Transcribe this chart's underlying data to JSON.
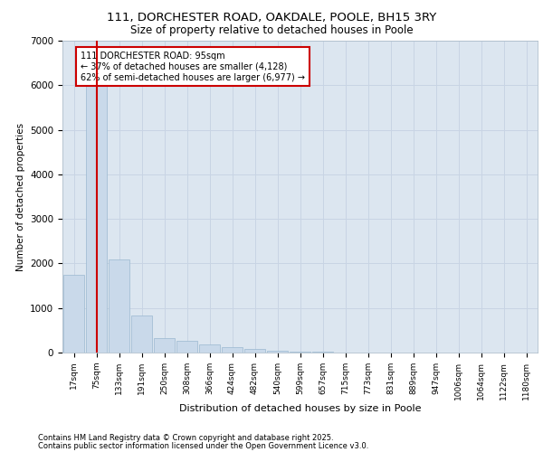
{
  "title1": "111, DORCHESTER ROAD, OAKDALE, POOLE, BH15 3RY",
  "title2": "Size of property relative to detached houses in Poole",
  "xlabel": "Distribution of detached houses by size in Poole",
  "ylabel": "Number of detached properties",
  "categories": [
    "17sqm",
    "75sqm",
    "133sqm",
    "191sqm",
    "250sqm",
    "308sqm",
    "366sqm",
    "424sqm",
    "482sqm",
    "540sqm",
    "599sqm",
    "657sqm",
    "715sqm",
    "773sqm",
    "831sqm",
    "889sqm",
    "947sqm",
    "1006sqm",
    "1064sqm",
    "1122sqm",
    "1180sqm"
  ],
  "values": [
    1750,
    5980,
    2100,
    830,
    330,
    270,
    190,
    120,
    80,
    50,
    25,
    12,
    5,
    2,
    1,
    0,
    0,
    0,
    0,
    0,
    0
  ],
  "bar_color": "#c9d9ea",
  "bar_edge_color": "#9ab8d0",
  "highlight_line_color": "#cc0000",
  "annotation_box_color": "#ffffff",
  "annotation_border_color": "#cc0000",
  "annotation_text_line1": "111 DORCHESTER ROAD: 95sqm",
  "annotation_text_line2": "← 37% of detached houses are smaller (4,128)",
  "annotation_text_line3": "62% of semi-detached houses are larger (6,977) →",
  "ylim": [
    0,
    7000
  ],
  "yticks": [
    0,
    1000,
    2000,
    3000,
    4000,
    5000,
    6000,
    7000
  ],
  "grid_color": "#c8d4e4",
  "bg_color": "#dce6f0",
  "footer1": "Contains HM Land Registry data © Crown copyright and database right 2025.",
  "footer2": "Contains public sector information licensed under the Open Government Licence v3.0."
}
